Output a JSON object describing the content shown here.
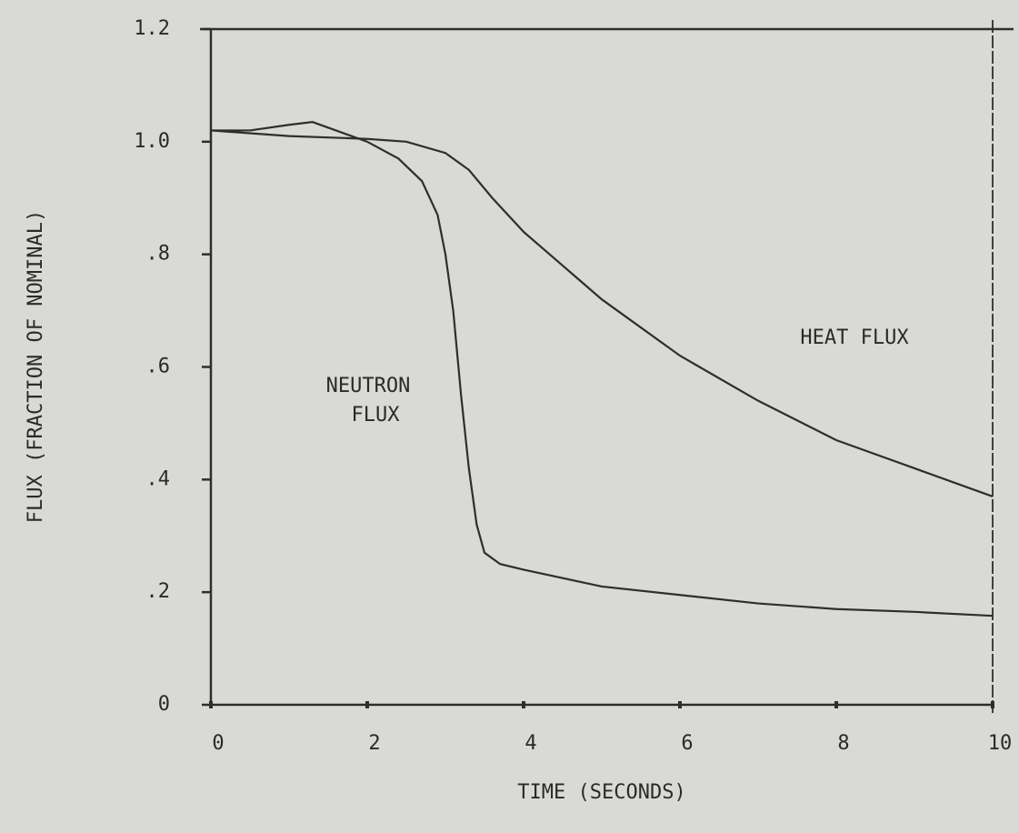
{
  "chart_data": {
    "type": "line",
    "xlabel": "TIME (SECONDS)",
    "ylabel": "FLUX (FRACTION OF NOMINAL)",
    "xlim": [
      0,
      10
    ],
    "ylim": [
      0,
      1.2
    ],
    "xticks": [
      0,
      2,
      4,
      6,
      8,
      10
    ],
    "yticks": [
      0,
      {
        "value": 0.2,
        "label": ".2"
      },
      {
        "value": 0.4,
        "label": ".4"
      },
      {
        "value": 0.6,
        "label": ".6"
      },
      {
        "value": 0.8,
        "label": ".8"
      },
      {
        "value": 1,
        "label": "1.0"
      },
      1.2
    ],
    "grid": false,
    "series": [
      {
        "name": [
          "NEUTRON",
          "FLUX"
        ],
        "color": "#2e2e2e",
        "x": [
          0,
          0.5,
          1,
          1.3,
          1.6,
          2,
          2.4,
          2.7,
          2.9,
          3.0,
          3.1,
          3.2,
          3.3,
          3.4,
          3.5,
          3.7,
          4,
          5,
          6,
          7,
          8,
          9,
          10
        ],
        "values": [
          1.02,
          1.02,
          1.03,
          1.035,
          1.02,
          1.0,
          0.97,
          0.93,
          0.87,
          0.8,
          0.7,
          0.55,
          0.42,
          0.32,
          0.27,
          0.25,
          0.24,
          0.21,
          0.195,
          0.18,
          0.17,
          0.165,
          0.158
        ]
      },
      {
        "name": [
          "HEAT FLUX"
        ],
        "color": "#2e2e2e",
        "x": [
          0,
          1,
          2,
          2.5,
          3,
          3.3,
          3.6,
          4,
          4.5,
          5,
          6,
          7,
          8,
          9,
          10
        ],
        "values": [
          1.02,
          1.01,
          1.005,
          1.0,
          0.98,
          0.95,
          0.9,
          0.84,
          0.78,
          0.72,
          0.62,
          0.54,
          0.47,
          0.42,
          0.37
        ]
      }
    ]
  }
}
